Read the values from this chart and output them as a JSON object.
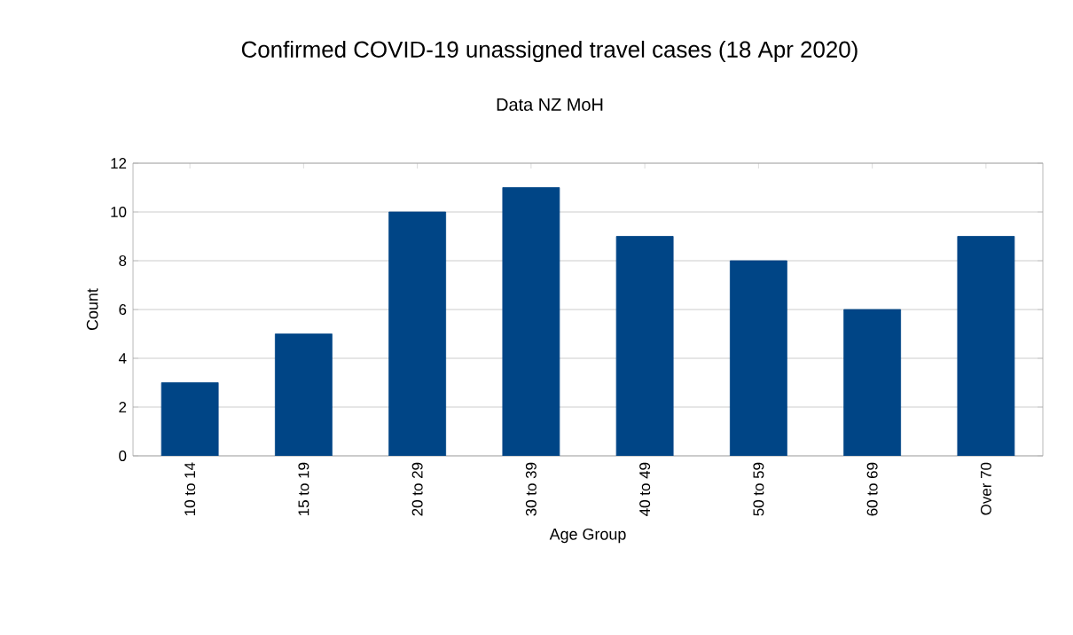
{
  "chart_data": {
    "type": "bar",
    "title": "Confirmed COVID-19 unassigned travel cases (18 Apr 2020)",
    "subtitle": "Data NZ MoH",
    "xlabel": "Age Group",
    "ylabel": "Count",
    "categories": [
      "10 to 14",
      "15 to 19",
      "20 to 29",
      "30 to 39",
      "40 to 49",
      "50 to 59",
      "60 to 69",
      "Over 70"
    ],
    "values": [
      3,
      5,
      10,
      11,
      9,
      8,
      6,
      9
    ],
    "color": "#004586",
    "ylim": [
      0,
      12
    ],
    "yticks": [
      0,
      2,
      4,
      6,
      8,
      10,
      12
    ],
    "grid": "y"
  }
}
